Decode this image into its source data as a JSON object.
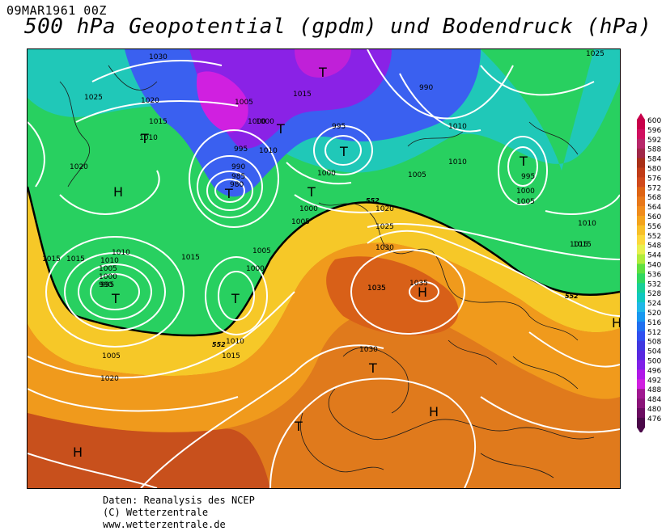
{
  "header": {
    "date": "09MAR1961 00Z",
    "title": "500 hPa Geopotential (gpdm) und Bodendruck (hPa)"
  },
  "credits": [
    "Daten: Reanalysis des NCEP",
    "(C) Wetterzentrale",
    "www.wetterzentrale.de"
  ],
  "legend": {
    "labels": [
      "600",
      "596",
      "592",
      "588",
      "584",
      "580",
      "576",
      "572",
      "568",
      "564",
      "560",
      "556",
      "552",
      "548",
      "544",
      "540",
      "536",
      "532",
      "528",
      "524",
      "520",
      "516",
      "512",
      "508",
      "504",
      "500",
      "496",
      "492",
      "488",
      "484",
      "480",
      "476"
    ],
    "colors": [
      "#c8004a",
      "#d01060",
      "#b8286a",
      "#a02848",
      "#a83018",
      "#c03c18",
      "#d04a1c",
      "#de6414",
      "#e8781a",
      "#f08c1c",
      "#f4a41c",
      "#f8c028",
      "#fcd83c",
      "#e8f050",
      "#b0ec3c",
      "#60e040",
      "#30d860",
      "#18d098",
      "#10c8c0",
      "#20b8e8",
      "#1898f0",
      "#2070f0",
      "#3050f0",
      "#4038e0",
      "#5828e0",
      "#8020e8",
      "#b018e8",
      "#d020e0",
      "#a01890",
      "#8a1478",
      "#6a0c60",
      "#4a0848"
    ]
  },
  "isobar_labels": [
    "1030",
    "1025",
    "1020",
    "1015",
    "1010",
    "1005",
    "1000",
    "995",
    "990",
    "985",
    "980",
    "1035",
    "1000",
    "1010",
    "1015"
  ],
  "extra_labels": [
    "1010",
    "1015",
    "1010",
    "1005",
    "1000",
    "995",
    "990",
    "1015",
    "1020",
    "1025",
    "1030",
    "1035",
    "1035",
    "1030",
    "1005",
    "1010",
    "1015",
    "1020",
    "1015",
    "1005",
    "1000",
    "1000",
    "1005",
    "1010",
    "1015",
    "1020",
    "995",
    "990",
    "1000",
    "1005",
    "1010",
    "995",
    "1000",
    "1005",
    "1010",
    "1015",
    "1025"
  ],
  "height_labels": [
    "552",
    "552",
    "552"
  ],
  "pressure_centres": [
    "T",
    "T",
    "T",
    "T",
    "T",
    "T",
    "T",
    "T",
    "T",
    "T",
    "T",
    "H",
    "H",
    "H",
    "H",
    "H"
  ]
}
